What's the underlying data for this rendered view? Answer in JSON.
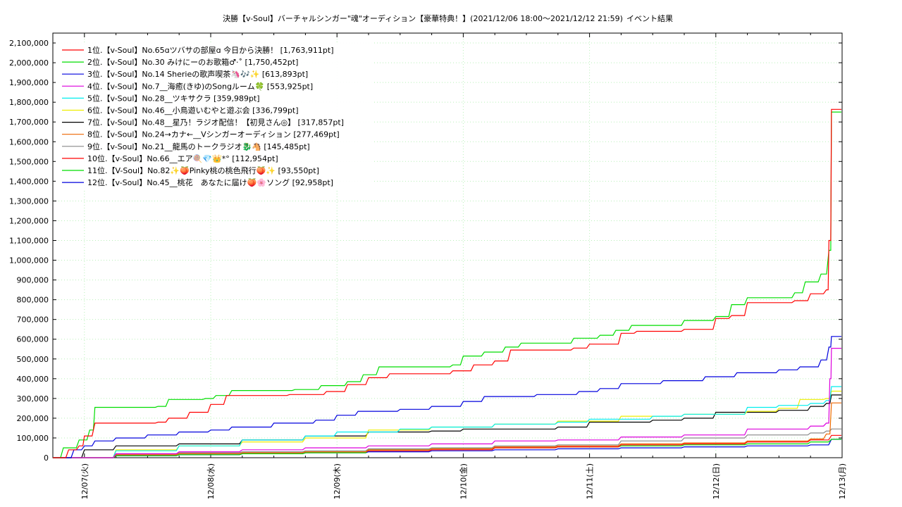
{
  "chart_data": {
    "type": "line",
    "title": "決勝【v-Soul】バーチャルシンガー\"魂\"オーディション【豪華特典！】(2021/12/06 18:00〜2021/12/12 21:59)",
    "subtitle": "イベント結果",
    "xlabel": "",
    "ylabel": "",
    "x_ticks": [
      "12/07(火)",
      "12/08(水)",
      "12/09(木)",
      "12/10(金)",
      "12/11(土)",
      "12/12(日)",
      "12/13(月)"
    ],
    "xlim": [
      "2021/12/06 18:00",
      "2021/12/13 00:00"
    ],
    "ylim": [
      0,
      2150000
    ],
    "y_ticks": [
      "0",
      "100,000",
      "200,000",
      "300,000",
      "400,000",
      "500,000",
      "600,000",
      "700,000",
      "800,000",
      "900,000",
      "1,000,000",
      "1,100,000",
      "1,200,000",
      "1,300,000",
      "1,400,000",
      "1,500,000",
      "1,600,000",
      "1,700,000",
      "1,800,000",
      "1,900,000",
      "2,000,000",
      "2,100,000"
    ],
    "grid": true,
    "legend_position": "top-left",
    "series": [
      {
        "name": "1位.【v-Soul】No.65ɑツバサの部屋ɑ 今日から決勝！ [1,763,911pt]",
        "color": "#ff0000",
        "points": [
          [
            "12/06 18:00",
            0
          ],
          [
            "12/06 21:00",
            40000
          ],
          [
            "12/06 23:00",
            60000
          ],
          [
            "12/07 00:00",
            110000
          ],
          [
            "12/07 02:00",
            175000
          ],
          [
            "12/07 14:00",
            180000
          ],
          [
            "12/07 16:00",
            200000
          ],
          [
            "12/07 20:00",
            230000
          ],
          [
            "12/08 00:00",
            270000
          ],
          [
            "12/08 03:00",
            315000
          ],
          [
            "12/08 15:00",
            320000
          ],
          [
            "12/08 22:00",
            335000
          ],
          [
            "12/09 02:00",
            370000
          ],
          [
            "12/09 06:00",
            405000
          ],
          [
            "12/09 10:00",
            425000
          ],
          [
            "12/09 22:00",
            440000
          ],
          [
            "12/10 02:00",
            470000
          ],
          [
            "12/10 06:00",
            490000
          ],
          [
            "12/10 09:00",
            545000
          ],
          [
            "12/10 21:00",
            555000
          ],
          [
            "12/11 00:00",
            575000
          ],
          [
            "12/11 06:00",
            630000
          ],
          [
            "12/11 09:00",
            640000
          ],
          [
            "12/11 18:00",
            650000
          ],
          [
            "12/12 00:00",
            705000
          ],
          [
            "12/12 03:00",
            720000
          ],
          [
            "12/12 06:00",
            785000
          ],
          [
            "12/12 15:00",
            795000
          ],
          [
            "12/12 18:00",
            830000
          ],
          [
            "12/12 21:00",
            850000
          ],
          [
            "12/12 21:30",
            1100000
          ],
          [
            "12/12 21:59",
            1763911
          ]
        ]
      },
      {
        "name": "2位.【v-Soul】No.30 みけにーのお歌箱♂·˚ [1,750,452pt]",
        "color": "#00dd00",
        "points": [
          [
            "12/06 18:00",
            0
          ],
          [
            "12/06 20:00",
            50000
          ],
          [
            "12/06 23:00",
            90000
          ],
          [
            "12/07 01:00",
            140000
          ],
          [
            "12/07 02:00",
            255000
          ],
          [
            "12/07 14:00",
            260000
          ],
          [
            "12/07 16:00",
            295000
          ],
          [
            "12/07 23:00",
            300000
          ],
          [
            "12/08 01:00",
            315000
          ],
          [
            "12/08 04:00",
            340000
          ],
          [
            "12/08 16:00",
            345000
          ],
          [
            "12/08 21:00",
            365000
          ],
          [
            "12/09 02:00",
            385000
          ],
          [
            "12/09 05:00",
            420000
          ],
          [
            "12/09 08:00",
            460000
          ],
          [
            "12/09 22:00",
            470000
          ],
          [
            "12/10 00:00",
            515000
          ],
          [
            "12/10 04:00",
            535000
          ],
          [
            "12/10 08:00",
            560000
          ],
          [
            "12/10 11:00",
            580000
          ],
          [
            "12/10 21:00",
            605000
          ],
          [
            "12/11 02:00",
            620000
          ],
          [
            "12/11 05:00",
            645000
          ],
          [
            "12/11 08:00",
            670000
          ],
          [
            "12/11 18:00",
            695000
          ],
          [
            "12/12 00:00",
            715000
          ],
          [
            "12/12 03:00",
            775000
          ],
          [
            "12/12 06:00",
            810000
          ],
          [
            "12/12 15:00",
            835000
          ],
          [
            "12/12 17:00",
            890000
          ],
          [
            "12/12 20:00",
            930000
          ],
          [
            "12/12 21:30",
            1050000
          ],
          [
            "12/12 21:59",
            1750452
          ]
        ]
      },
      {
        "name": "3位.【v-Soul】No.14 Sherieの歌声喫茶🦄🎶✨ [613,893pt]",
        "color": "#0000dd",
        "points": [
          [
            "12/06 18:00",
            0
          ],
          [
            "12/06 22:00",
            40000
          ],
          [
            "12/07 00:00",
            60000
          ],
          [
            "12/07 02:00",
            85000
          ],
          [
            "12/07 06:00",
            100000
          ],
          [
            "12/07 12:00",
            115000
          ],
          [
            "12/07 18:00",
            130000
          ],
          [
            "12/08 00:00",
            140000
          ],
          [
            "12/08 04:00",
            155000
          ],
          [
            "12/08 12:00",
            175000
          ],
          [
            "12/08 20:00",
            190000
          ],
          [
            "12/09 00:00",
            215000
          ],
          [
            "12/09 04:00",
            235000
          ],
          [
            "12/09 12:00",
            245000
          ],
          [
            "12/09 18:00",
            260000
          ],
          [
            "12/10 00:00",
            285000
          ],
          [
            "12/10 04:00",
            310000
          ],
          [
            "12/10 14:00",
            320000
          ],
          [
            "12/10 22:00",
            335000
          ],
          [
            "12/11 02:00",
            350000
          ],
          [
            "12/11 06:00",
            375000
          ],
          [
            "12/11 14:00",
            390000
          ],
          [
            "12/11 22:00",
            410000
          ],
          [
            "12/12 04:00",
            430000
          ],
          [
            "12/12 12:00",
            445000
          ],
          [
            "12/12 16:00",
            460000
          ],
          [
            "12/12 20:00",
            495000
          ],
          [
            "12/12 21:30",
            560000
          ],
          [
            "12/12 21:59",
            613893
          ]
        ]
      },
      {
        "name": "4位.【v-Soul】No.7__海癒(きゆ)のSongルーム🍀 [553,925pt]",
        "color": "#dd00dd",
        "points": [
          [
            "12/06 18:00",
            0
          ],
          [
            "12/07 06:00",
            20000
          ],
          [
            "12/07 18:00",
            30000
          ],
          [
            "12/08 06:00",
            40000
          ],
          [
            "12/08 18:00",
            50000
          ],
          [
            "12/09 06:00",
            60000
          ],
          [
            "12/09 18:00",
            70000
          ],
          [
            "12/10 06:00",
            85000
          ],
          [
            "12/10 18:00",
            90000
          ],
          [
            "12/11 06:00",
            105000
          ],
          [
            "12/11 18:00",
            115000
          ],
          [
            "12/12 06:00",
            145000
          ],
          [
            "12/12 18:00",
            160000
          ],
          [
            "12/12 21:00",
            175000
          ],
          [
            "12/12 21:40",
            400000
          ],
          [
            "12/12 21:59",
            553925
          ]
        ]
      },
      {
        "name": "5位.【v-Soul】No.28__ツキサクラ [359,989pt]",
        "color": "#00eeee",
        "points": [
          [
            "12/06 18:00",
            0
          ],
          [
            "12/07 06:00",
            35000
          ],
          [
            "12/07 18:00",
            60000
          ],
          [
            "12/08 06:00",
            90000
          ],
          [
            "12/08 18:00",
            110000
          ],
          [
            "12/09 00:00",
            130000
          ],
          [
            "12/09 12:00",
            145000
          ],
          [
            "12/09 18:00",
            155000
          ],
          [
            "12/10 06:00",
            170000
          ],
          [
            "12/10 18:00",
            180000
          ],
          [
            "12/11 00:00",
            195000
          ],
          [
            "12/11 12:00",
            210000
          ],
          [
            "12/11 18:00",
            220000
          ],
          [
            "12/12 06:00",
            255000
          ],
          [
            "12/12 12:00",
            265000
          ],
          [
            "12/12 18:00",
            275000
          ],
          [
            "12/12 21:00",
            290000
          ],
          [
            "12/12 21:59",
            359989
          ]
        ]
      },
      {
        "name": "6位.【v-Soul】No.46__小鳥遊いむやと遊ぶ会 [336,799pt]",
        "color": "#eeee00",
        "points": [
          [
            "12/06 18:00",
            0
          ],
          [
            "12/07 06:00",
            40000
          ],
          [
            "12/07 18:00",
            60000
          ],
          [
            "12/08 06:00",
            80000
          ],
          [
            "12/08 18:00",
            100000
          ],
          [
            "12/09 06:00",
            140000
          ],
          [
            "12/09 18:00",
            155000
          ],
          [
            "12/10 06:00",
            170000
          ],
          [
            "12/10 18:00",
            185000
          ],
          [
            "12/11 06:00",
            210000
          ],
          [
            "12/11 18:00",
            220000
          ],
          [
            "12/12 06:00",
            235000
          ],
          [
            "12/12 12:00",
            250000
          ],
          [
            "12/12 16:00",
            295000
          ],
          [
            "12/12 21:00",
            300000
          ],
          [
            "12/12 21:59",
            336799
          ]
        ]
      },
      {
        "name": "7位.【v-Soul】No.48__星乃！ラジオ配信！【初見さん◎】 [317,857pt]",
        "color": "#000000",
        "points": [
          [
            "12/06 18:00",
            0
          ],
          [
            "12/07 00:00",
            40000
          ],
          [
            "12/07 06:00",
            60000
          ],
          [
            "12/07 18:00",
            70000
          ],
          [
            "12/08 06:00",
            90000
          ],
          [
            "12/08 18:00",
            110000
          ],
          [
            "12/09 06:00",
            130000
          ],
          [
            "12/09 18:00",
            135000
          ],
          [
            "12/10 00:00",
            145000
          ],
          [
            "12/10 18:00",
            155000
          ],
          [
            "12/11 00:00",
            180000
          ],
          [
            "12/11 12:00",
            190000
          ],
          [
            "12/11 18:00",
            200000
          ],
          [
            "12/12 00:00",
            230000
          ],
          [
            "12/12 12:00",
            240000
          ],
          [
            "12/12 18:00",
            260000
          ],
          [
            "12/12 21:00",
            275000
          ],
          [
            "12/12 21:59",
            317857
          ]
        ]
      },
      {
        "name": "8位.【v-Soul】No.24→カナ←__Vシンガーオーディション [277,469pt]",
        "color": "#ee6600",
        "points": [
          [
            "12/06 18:00",
            0
          ],
          [
            "12/07 06:00",
            15000
          ],
          [
            "12/07 18:00",
            20000
          ],
          [
            "12/08 06:00",
            25000
          ],
          [
            "12/08 18:00",
            30000
          ],
          [
            "12/09 06:00",
            40000
          ],
          [
            "12/09 18:00",
            45000
          ],
          [
            "12/10 06:00",
            55000
          ],
          [
            "12/10 18:00",
            60000
          ],
          [
            "12/11 06:00",
            70000
          ],
          [
            "12/11 18:00",
            75000
          ],
          [
            "12/12 06:00",
            85000
          ],
          [
            "12/12 18:00",
            95000
          ],
          [
            "12/12 21:00",
            120000
          ],
          [
            "12/12 21:59",
            277469
          ]
        ]
      },
      {
        "name": "9位.【v-Soul】No.21__龍馬のトークラジオ🐉🐴 [145,485pt]",
        "color": "#888888",
        "points": [
          [
            "12/06 18:00",
            0
          ],
          [
            "12/07 06:00",
            20000
          ],
          [
            "12/07 18:00",
            25000
          ],
          [
            "12/08 06:00",
            30000
          ],
          [
            "12/08 18:00",
            35000
          ],
          [
            "12/09 06:00",
            45000
          ],
          [
            "12/09 18:00",
            50000
          ],
          [
            "12/10 06:00",
            60000
          ],
          [
            "12/10 18:00",
            65000
          ],
          [
            "12/11 06:00",
            85000
          ],
          [
            "12/11 18:00",
            100000
          ],
          [
            "12/12 06:00",
            115000
          ],
          [
            "12/12 18:00",
            125000
          ],
          [
            "12/12 21:00",
            135000
          ],
          [
            "12/12 21:59",
            145485
          ]
        ]
      },
      {
        "name": "10位.【v-Soul】No.66__エア🍭💎👑*° [112,954pt]",
        "color": "#ff0000",
        "points": [
          [
            "12/06 18:00",
            0
          ],
          [
            "12/07 06:00",
            15000
          ],
          [
            "12/07 18:00",
            20000
          ],
          [
            "12/08 06:00",
            25000
          ],
          [
            "12/08 18:00",
            30000
          ],
          [
            "12/09 06:00",
            35000
          ],
          [
            "12/09 18:00",
            40000
          ],
          [
            "12/10 06:00",
            50000
          ],
          [
            "12/10 18:00",
            55000
          ],
          [
            "12/11 06:00",
            65000
          ],
          [
            "12/11 18:00",
            70000
          ],
          [
            "12/12 06:00",
            80000
          ],
          [
            "12/12 18:00",
            90000
          ],
          [
            "12/12 21:59",
            112954
          ]
        ]
      },
      {
        "name": "11位.【V-Soul】No.82✨🍑Pinky桃の桃色飛行🍑✨ [93,550pt]",
        "color": "#00dd00",
        "points": [
          [
            "12/06 18:00",
            0
          ],
          [
            "12/07 06:00",
            10000
          ],
          [
            "12/07 18:00",
            15000
          ],
          [
            "12/08 06:00",
            20000
          ],
          [
            "12/08 18:00",
            25000
          ],
          [
            "12/09 06:00",
            40000
          ],
          [
            "12/09 18:00",
            45000
          ],
          [
            "12/10 06:00",
            50000
          ],
          [
            "12/10 18:00",
            55000
          ],
          [
            "12/11 06:00",
            60000
          ],
          [
            "12/11 18:00",
            65000
          ],
          [
            "12/12 06:00",
            70000
          ],
          [
            "12/12 18:00",
            80000
          ],
          [
            "12/12 21:59",
            93550
          ]
        ]
      },
      {
        "name": "12位.【v-Soul】No.45__桃花　あなたに届け🍑🌸ソング [92,958pt]",
        "color": "#0000dd",
        "points": [
          [
            "12/06 18:00",
            0
          ],
          [
            "12/07 06:00",
            10000
          ],
          [
            "12/07 18:00",
            15000
          ],
          [
            "12/08 06:00",
            20000
          ],
          [
            "12/08 18:00",
            25000
          ],
          [
            "12/09 06:00",
            30000
          ],
          [
            "12/09 18:00",
            35000
          ],
          [
            "12/10 06:00",
            40000
          ],
          [
            "12/10 18:00",
            45000
          ],
          [
            "12/11 06:00",
            50000
          ],
          [
            "12/11 18:00",
            55000
          ],
          [
            "12/12 06:00",
            60000
          ],
          [
            "12/12 18:00",
            65000
          ],
          [
            "12/12 21:59",
            92958
          ]
        ]
      }
    ]
  }
}
